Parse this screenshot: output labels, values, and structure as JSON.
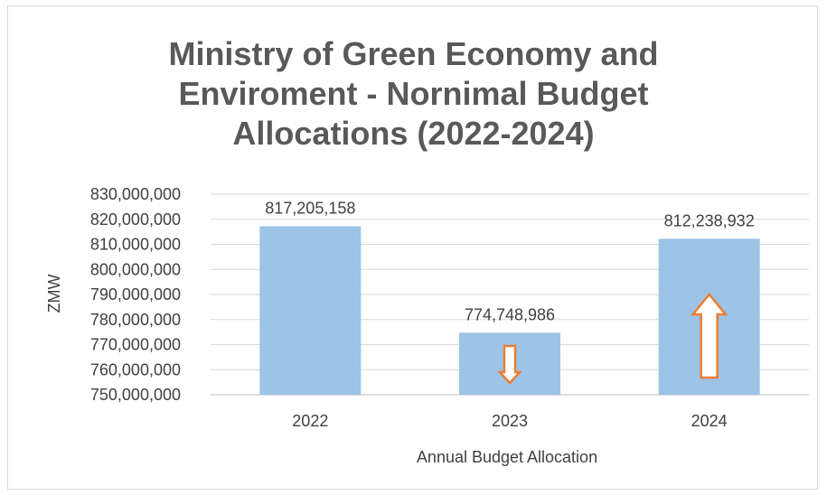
{
  "chart_data": {
    "type": "bar",
    "title_lines": [
      "Ministry of Green Economy and",
      "Enviroment - Nornimal Budget",
      "Allocations (2022-2024)"
    ],
    "xlabel": "Annual Budget Allocation",
    "ylabel": "ZMW",
    "categories": [
      "2022",
      "2023",
      "2024"
    ],
    "values": [
      817205158,
      774748986,
      812238932
    ],
    "value_labels": [
      "817,205,158",
      "774,748,986",
      "812,238,932"
    ],
    "ylim": [
      750000000,
      830000000
    ],
    "ytick_step": 10000000,
    "ytick_labels": [
      "750,000,000",
      "760,000,000",
      "770,000,000",
      "780,000,000",
      "790,000,000",
      "800,000,000",
      "810,000,000",
      "820,000,000",
      "830,000,000"
    ],
    "grid": true,
    "bar_color": "#9dc3e6",
    "annotations": [
      {
        "category": "2023",
        "type": "arrow",
        "direction": "down",
        "color": "#ed7d31"
      },
      {
        "category": "2024",
        "type": "arrow",
        "direction": "up",
        "color": "#ed7d31"
      }
    ]
  }
}
